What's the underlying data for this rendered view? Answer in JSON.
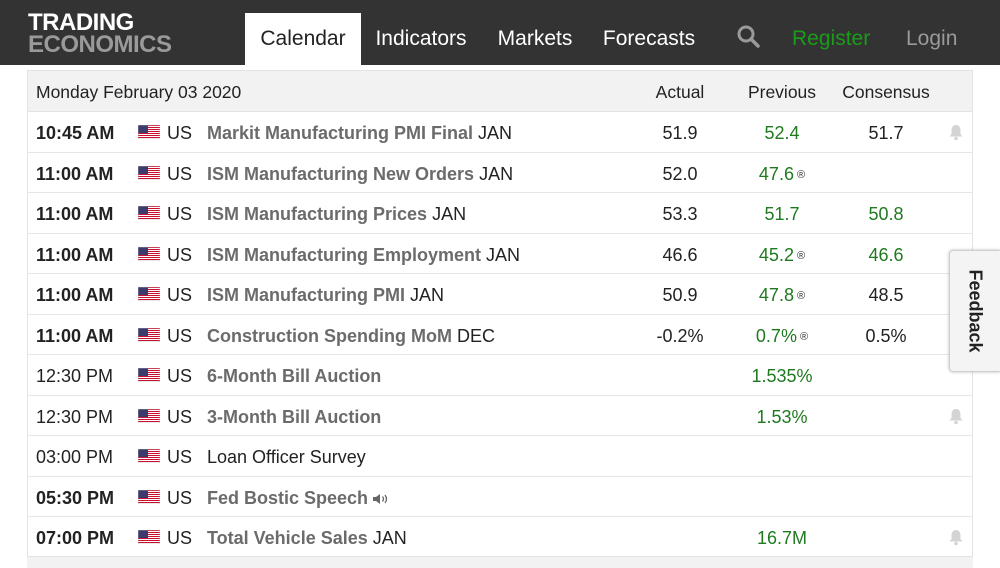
{
  "logo": {
    "line1": "TRADING",
    "line2": "ECONOMICS"
  },
  "nav": {
    "tabs": [
      {
        "label": "Calendar",
        "active": true
      },
      {
        "label": "Indicators"
      },
      {
        "label": "Markets"
      },
      {
        "label": "Forecasts"
      }
    ],
    "search_icon": "search-icon",
    "register": "Register",
    "login": "Login"
  },
  "calendar": {
    "date": "Monday February 03 2020",
    "headers": {
      "actual": "Actual",
      "previous": "Previous",
      "consensus": "Consensus"
    },
    "rows": [
      {
        "time": "10:45 AM",
        "bold_time": true,
        "country": "US",
        "event": "Markit Manufacturing PMI Final",
        "ref": "JAN",
        "actual": "51.9",
        "previous": "52.4",
        "revised": false,
        "consensus": "51.7",
        "consensus_green": false,
        "bell": true
      },
      {
        "time": "11:00 AM",
        "bold_time": true,
        "country": "US",
        "event": "ISM Manufacturing New Orders",
        "ref": "JAN",
        "actual": "52.0",
        "previous": "47.6",
        "revised": true,
        "consensus": "",
        "consensus_green": false,
        "bell": false
      },
      {
        "time": "11:00 AM",
        "bold_time": true,
        "country": "US",
        "event": "ISM Manufacturing Prices",
        "ref": "JAN",
        "actual": "53.3",
        "previous": "51.7",
        "revised": false,
        "consensus": "50.8",
        "consensus_green": true,
        "bell": false
      },
      {
        "time": "11:00 AM",
        "bold_time": true,
        "country": "US",
        "event": "ISM Manufacturing Employment",
        "ref": "JAN",
        "actual": "46.6",
        "previous": "45.2",
        "revised": true,
        "consensus": "46.6",
        "consensus_green": true,
        "bell": false
      },
      {
        "time": "11:00 AM",
        "bold_time": true,
        "country": "US",
        "event": "ISM Manufacturing PMI",
        "ref": "JAN",
        "actual": "50.9",
        "previous": "47.8",
        "revised": true,
        "consensus": "48.5",
        "consensus_green": false,
        "bell": false
      },
      {
        "time": "11:00 AM",
        "bold_time": true,
        "country": "US",
        "event": "Construction Spending MoM",
        "ref": "DEC",
        "actual": "-0.2%",
        "previous": "0.7%",
        "revised": true,
        "consensus": "0.5%",
        "consensus_green": false,
        "bell": false
      },
      {
        "time": "12:30 PM",
        "bold_time": false,
        "country": "US",
        "event": "6-Month Bill Auction",
        "ref": "",
        "actual": "",
        "previous": "1.535%",
        "revised": false,
        "consensus": "",
        "consensus_green": false,
        "bell": false
      },
      {
        "time": "12:30 PM",
        "bold_time": false,
        "country": "US",
        "event": "3-Month Bill Auction",
        "ref": "",
        "actual": "",
        "previous": "1.53%",
        "revised": false,
        "consensus": "",
        "consensus_green": false,
        "bell": true
      },
      {
        "time": "03:00 PM",
        "bold_time": false,
        "country": "US",
        "event": "Loan Officer Survey",
        "ref": "",
        "actual": "",
        "previous": "",
        "revised": false,
        "consensus": "",
        "consensus_green": false,
        "bell": false,
        "plain": true
      },
      {
        "time": "05:30 PM",
        "bold_time": true,
        "country": "US",
        "event": "Fed Bostic Speech",
        "ref": "",
        "actual": "",
        "previous": "",
        "revised": false,
        "consensus": "",
        "consensus_green": false,
        "bell": false,
        "speaker": true
      },
      {
        "time": "07:00 PM",
        "bold_time": true,
        "country": "US",
        "event": "Total Vehicle Sales",
        "ref": "JAN",
        "actual": "",
        "previous": "16.7M",
        "revised": false,
        "consensus": "",
        "consensus_green": false,
        "bell": true
      }
    ],
    "revised_mark": "®"
  },
  "feedback": {
    "label": "Feedback"
  },
  "colors": {
    "topbar": "#333333",
    "register": "#1a9c1a",
    "previous": "#1f7a1f",
    "event": "#6b6b6b"
  }
}
